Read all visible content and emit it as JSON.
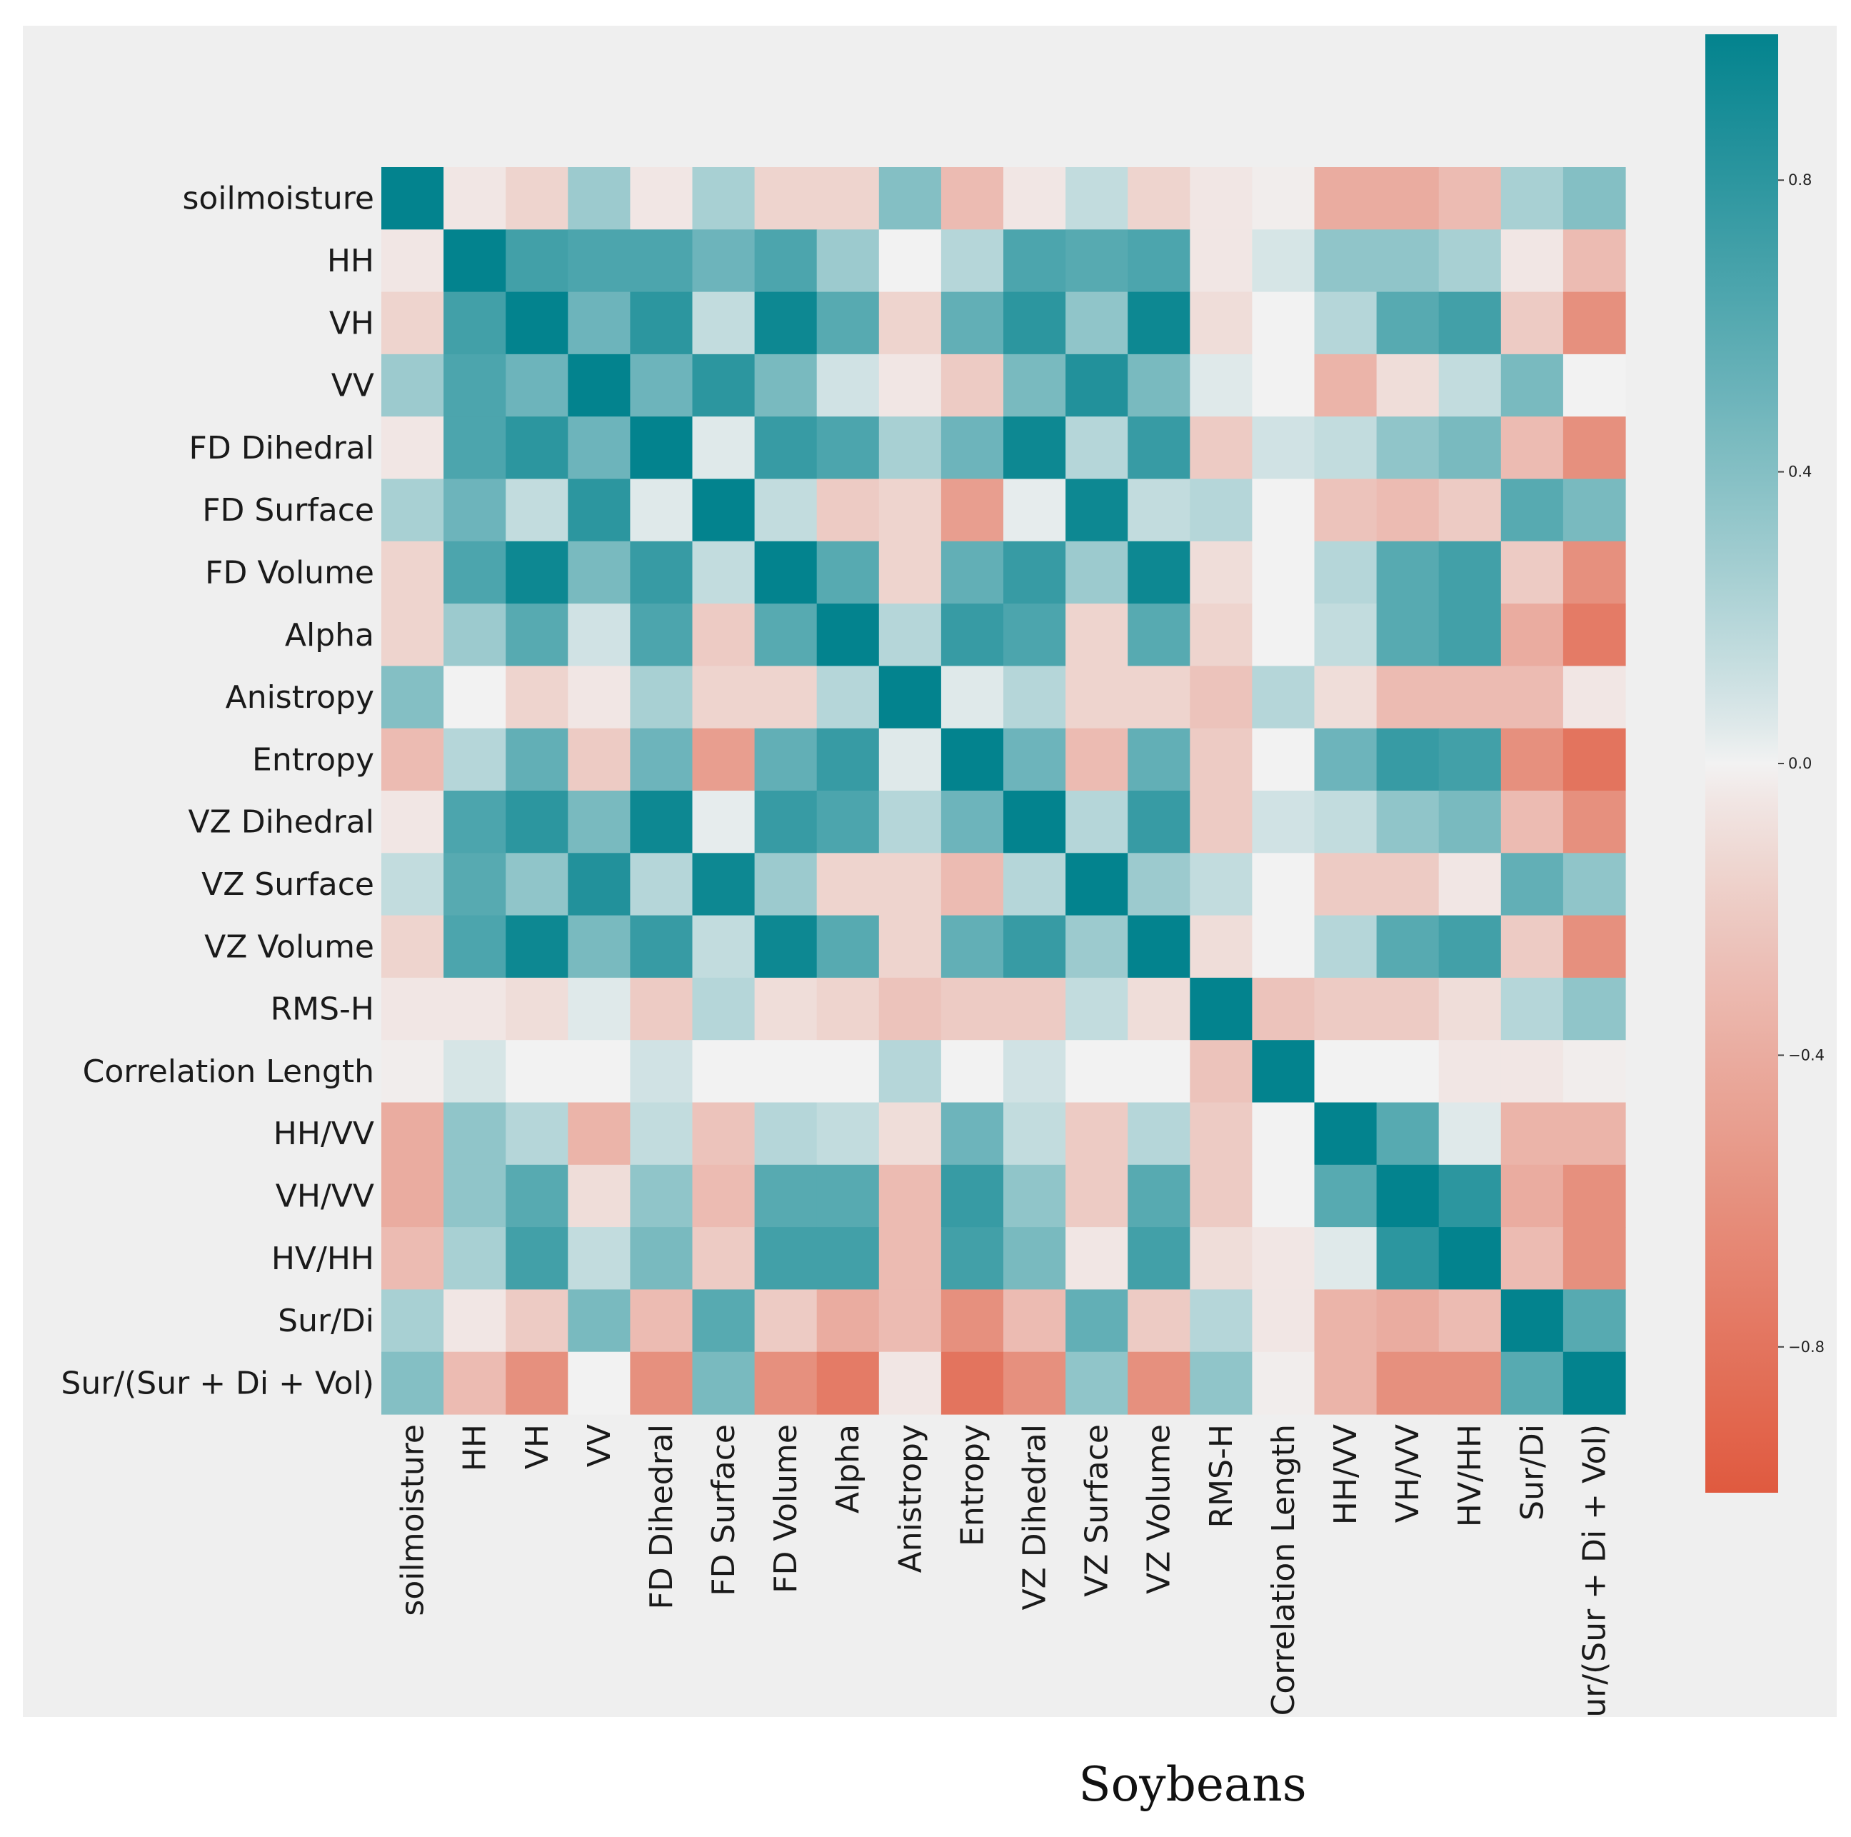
{
  "chart_data": {
    "type": "heatmap",
    "caption": "Soybeans",
    "labels": [
      "soilmoisture",
      "HH",
      "VH",
      "VV",
      "FD Dihedral",
      "FD Surface",
      "FD Volume",
      "Alpha",
      "Anistropy",
      "Entropy",
      "VZ Dihedral",
      "VZ Surface",
      "VZ Volume",
      "RMS-H",
      "Correlation Length",
      "HH/VV",
      "VH/VV",
      "HV/HH",
      "Sur/Di",
      "Sur/(Sur + Di + Vol)"
    ],
    "matrix": [
      [
        1.0,
        -0.05,
        -0.15,
        0.3,
        -0.05,
        0.25,
        -0.15,
        -0.15,
        0.4,
        -0.3,
        -0.05,
        0.15,
        -0.15,
        -0.05,
        -0.02,
        -0.4,
        -0.4,
        -0.3,
        0.25,
        0.4
      ],
      [
        -0.05,
        1.0,
        0.7,
        0.65,
        0.65,
        0.5,
        0.65,
        0.3,
        0.0,
        0.2,
        0.65,
        0.6,
        0.65,
        -0.05,
        0.08,
        0.35,
        0.35,
        0.25,
        -0.05,
        -0.3
      ],
      [
        -0.15,
        0.7,
        1.0,
        0.5,
        0.8,
        0.15,
        0.95,
        0.6,
        -0.15,
        0.55,
        0.8,
        0.35,
        0.95,
        -0.1,
        0.0,
        0.2,
        0.6,
        0.7,
        -0.2,
        -0.6
      ],
      [
        0.3,
        0.65,
        0.5,
        1.0,
        0.5,
        0.8,
        0.45,
        0.1,
        -0.05,
        -0.2,
        0.45,
        0.85,
        0.45,
        0.05,
        0.0,
        -0.35,
        -0.1,
        0.15,
        0.45,
        0.0
      ],
      [
        -0.05,
        0.65,
        0.8,
        0.5,
        1.0,
        0.05,
        0.75,
        0.65,
        0.25,
        0.5,
        0.95,
        0.2,
        0.75,
        -0.2,
        0.1,
        0.15,
        0.35,
        0.45,
        -0.3,
        -0.6
      ],
      [
        0.25,
        0.5,
        0.15,
        0.8,
        0.05,
        1.0,
        0.15,
        -0.2,
        -0.15,
        -0.5,
        0.03,
        0.95,
        0.15,
        0.2,
        0.0,
        -0.25,
        -0.3,
        -0.2,
        0.6,
        0.45
      ],
      [
        -0.15,
        0.65,
        0.95,
        0.45,
        0.75,
        0.15,
        1.0,
        0.6,
        -0.15,
        0.55,
        0.75,
        0.3,
        0.95,
        -0.1,
        0.0,
        0.2,
        0.6,
        0.7,
        -0.2,
        -0.6
      ],
      [
        -0.15,
        0.3,
        0.6,
        0.1,
        0.65,
        -0.2,
        0.6,
        1.0,
        0.2,
        0.75,
        0.65,
        -0.15,
        0.6,
        -0.15,
        0.0,
        0.15,
        0.6,
        0.7,
        -0.4,
        -0.75
      ],
      [
        0.4,
        0.0,
        -0.15,
        -0.05,
        0.25,
        -0.15,
        -0.15,
        0.2,
        1.0,
        0.05,
        0.2,
        -0.15,
        -0.15,
        -0.25,
        0.2,
        -0.1,
        -0.3,
        -0.3,
        -0.3,
        -0.05
      ],
      [
        -0.3,
        0.2,
        0.55,
        -0.2,
        0.5,
        -0.5,
        0.55,
        0.75,
        0.05,
        1.0,
        0.5,
        -0.3,
        0.55,
        -0.2,
        0.0,
        0.5,
        0.75,
        0.7,
        -0.6,
        -0.8
      ],
      [
        -0.05,
        0.65,
        0.8,
        0.45,
        0.95,
        0.03,
        0.75,
        0.65,
        0.2,
        0.5,
        1.0,
        0.2,
        0.75,
        -0.2,
        0.1,
        0.15,
        0.35,
        0.45,
        -0.3,
        -0.6
      ],
      [
        0.15,
        0.6,
        0.35,
        0.85,
        0.2,
        0.95,
        0.3,
        -0.15,
        -0.15,
        -0.3,
        0.2,
        1.0,
        0.3,
        0.15,
        0.0,
        -0.2,
        -0.2,
        -0.05,
        0.55,
        0.35
      ],
      [
        -0.15,
        0.65,
        0.95,
        0.45,
        0.75,
        0.15,
        0.95,
        0.6,
        -0.15,
        0.55,
        0.75,
        0.3,
        1.0,
        -0.1,
        0.0,
        0.2,
        0.6,
        0.7,
        -0.2,
        -0.6
      ],
      [
        -0.05,
        -0.05,
        -0.1,
        0.05,
        -0.2,
        0.2,
        -0.1,
        -0.15,
        -0.25,
        -0.2,
        -0.2,
        0.15,
        -0.1,
        1.0,
        -0.25,
        -0.2,
        -0.2,
        -0.1,
        0.2,
        0.35
      ],
      [
        -0.02,
        0.08,
        0.0,
        0.0,
        0.1,
        0.0,
        0.0,
        0.0,
        0.2,
        0.0,
        0.1,
        0.0,
        0.0,
        -0.25,
        1.0,
        0.0,
        0.0,
        -0.05,
        -0.05,
        -0.02
      ],
      [
        -0.4,
        0.35,
        0.2,
        -0.35,
        0.15,
        -0.25,
        0.2,
        0.15,
        -0.1,
        0.5,
        0.15,
        -0.2,
        0.2,
        -0.2,
        0.0,
        1.0,
        0.6,
        0.05,
        -0.35,
        -0.35
      ],
      [
        -0.4,
        0.35,
        0.6,
        -0.1,
        0.35,
        -0.3,
        0.6,
        0.6,
        -0.3,
        0.75,
        0.35,
        -0.2,
        0.6,
        -0.2,
        0.0,
        0.6,
        1.0,
        0.8,
        -0.4,
        -0.6
      ],
      [
        -0.3,
        0.25,
        0.7,
        0.15,
        0.45,
        -0.2,
        0.7,
        0.7,
        -0.3,
        0.7,
        0.45,
        -0.05,
        0.7,
        -0.1,
        -0.05,
        0.05,
        0.8,
        1.0,
        -0.3,
        -0.6
      ],
      [
        0.25,
        -0.05,
        -0.2,
        0.45,
        -0.3,
        0.6,
        -0.2,
        -0.4,
        -0.3,
        -0.6,
        -0.3,
        0.55,
        -0.2,
        0.2,
        -0.05,
        -0.35,
        -0.4,
        -0.3,
        1.0,
        0.6
      ],
      [
        0.4,
        -0.3,
        -0.6,
        0.0,
        -0.6,
        0.45,
        -0.6,
        -0.75,
        -0.05,
        -0.8,
        -0.6,
        0.35,
        -0.6,
        0.35,
        -0.02,
        -0.35,
        -0.6,
        -0.6,
        0.6,
        1.0
      ]
    ],
    "colorbar": {
      "range": [
        -1.0,
        1.0
      ],
      "ticks": [
        0.8,
        0.4,
        0.0,
        -0.4,
        -0.8
      ],
      "tick_labels": [
        "0.8",
        "0.4",
        "0.0",
        "−0.4",
        "−0.8"
      ],
      "negative_color": "#e05a3f",
      "zero_color": "#f2f2f2",
      "positive_color": "#03838e"
    }
  }
}
